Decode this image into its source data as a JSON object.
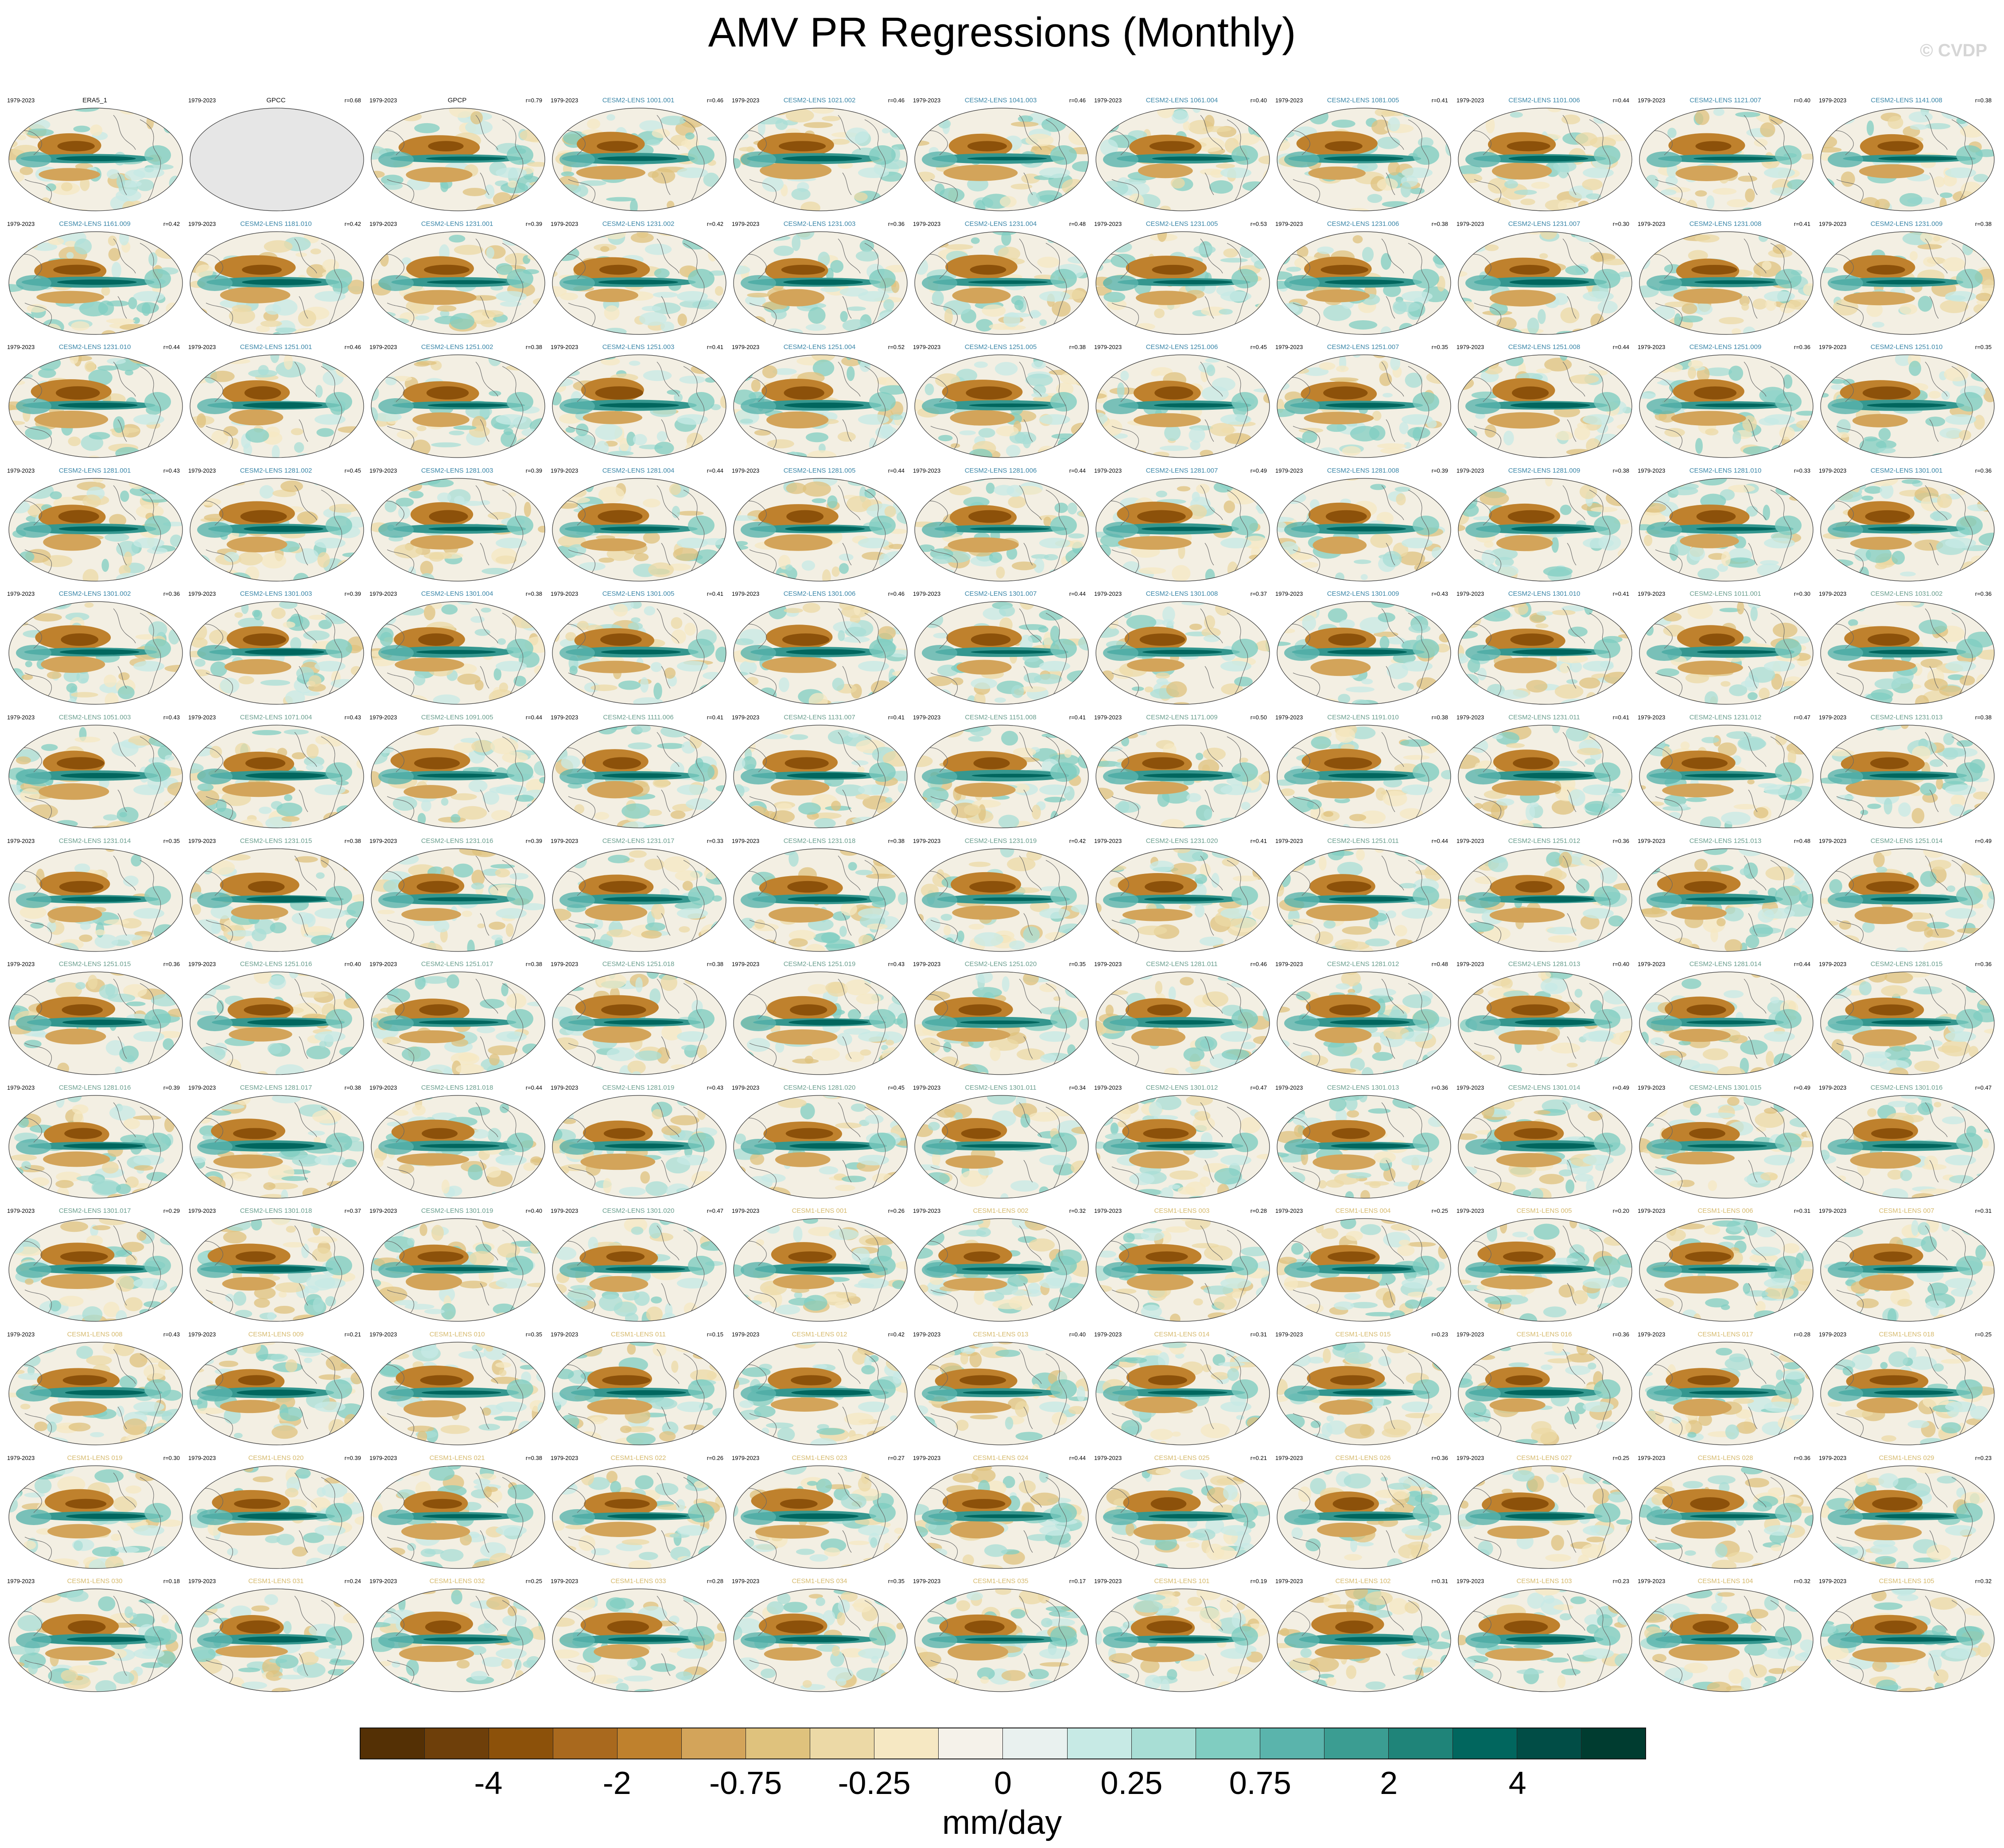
{
  "title": "AMV PR Regressions (Monthly)",
  "watermark": "© CVDP",
  "period_label": "1979-2023",
  "panels": [
    {
      "name": "ERA5_1",
      "r": "",
      "group": "obs",
      "map": "ocean"
    },
    {
      "name": "GPCC",
      "r": "r=0.68",
      "group": "obs",
      "map": "gray"
    },
    {
      "name": "GPCP",
      "r": "r=0.79",
      "group": "obs",
      "map": "ocean"
    },
    {
      "name": "CESM2-LENS 1001.001",
      "r": "r=0.46",
      "group": "cesm2",
      "map": "ocean"
    },
    {
      "name": "CESM2-LENS 1021.002",
      "r": "r=0.46",
      "group": "cesm2",
      "map": "ocean"
    },
    {
      "name": "CESM2-LENS 1041.003",
      "r": "r=0.46",
      "group": "cesm2",
      "map": "ocean"
    },
    {
      "name": "CESM2-LENS 1061.004",
      "r": "r=0.40",
      "group": "cesm2",
      "map": "ocean"
    },
    {
      "name": "CESM2-LENS 1081.005",
      "r": "r=0.41",
      "group": "cesm2",
      "map": "ocean"
    },
    {
      "name": "CESM2-LENS 1101.006",
      "r": "r=0.44",
      "group": "cesm2",
      "map": "ocean"
    },
    {
      "name": "CESM2-LENS 1121.007",
      "r": "r=0.40",
      "group": "cesm2",
      "map": "ocean"
    },
    {
      "name": "CESM2-LENS 1141.008",
      "r": "r=0.38",
      "group": "cesm2",
      "map": "ocean"
    },
    {
      "name": "CESM2-LENS 1161.009",
      "r": "r=0.42",
      "group": "cesm2",
      "map": "ocean"
    },
    {
      "name": "CESM2-LENS 1181.010",
      "r": "r=0.42",
      "group": "cesm2",
      "map": "ocean"
    },
    {
      "name": "CESM2-LENS 1231.001",
      "r": "r=0.39",
      "group": "cesm2",
      "map": "ocean"
    },
    {
      "name": "CESM2-LENS 1231.002",
      "r": "r=0.42",
      "group": "cesm2",
      "map": "ocean"
    },
    {
      "name": "CESM2-LENS 1231.003",
      "r": "r=0.36",
      "group": "cesm2",
      "map": "ocean"
    },
    {
      "name": "CESM2-LENS 1231.004",
      "r": "r=0.48",
      "group": "cesm2",
      "map": "ocean"
    },
    {
      "name": "CESM2-LENS 1231.005",
      "r": "r=0.53",
      "group": "cesm2",
      "map": "ocean"
    },
    {
      "name": "CESM2-LENS 1231.006",
      "r": "r=0.38",
      "group": "cesm2",
      "map": "ocean"
    },
    {
      "name": "CESM2-LENS 1231.007",
      "r": "r=0.30",
      "group": "cesm2",
      "map": "ocean"
    },
    {
      "name": "CESM2-LENS 1231.008",
      "r": "r=0.41",
      "group": "cesm2",
      "map": "ocean"
    },
    {
      "name": "CESM2-LENS 1231.009",
      "r": "r=0.38",
      "group": "cesm2",
      "map": "ocean"
    },
    {
      "name": "CESM2-LENS 1231.010",
      "r": "r=0.44",
      "group": "cesm2",
      "map": "ocean"
    },
    {
      "name": "CESM2-LENS 1251.001",
      "r": "r=0.46",
      "group": "cesm2",
      "map": "ocean"
    },
    {
      "name": "CESM2-LENS 1251.002",
      "r": "r=0.38",
      "group": "cesm2",
      "map": "ocean"
    },
    {
      "name": "CESM2-LENS 1251.003",
      "r": "r=0.41",
      "group": "cesm2",
      "map": "ocean"
    },
    {
      "name": "CESM2-LENS 1251.004",
      "r": "r=0.52",
      "group": "cesm2",
      "map": "ocean"
    },
    {
      "name": "CESM2-LENS 1251.005",
      "r": "r=0.38",
      "group": "cesm2",
      "map": "ocean"
    },
    {
      "name": "CESM2-LENS 1251.006",
      "r": "r=0.45",
      "group": "cesm2",
      "map": "ocean"
    },
    {
      "name": "CESM2-LENS 1251.007",
      "r": "r=0.35",
      "group": "cesm2",
      "map": "ocean"
    },
    {
      "name": "CESM2-LENS 1251.008",
      "r": "r=0.44",
      "group": "cesm2",
      "map": "ocean"
    },
    {
      "name": "CESM2-LENS 1251.009",
      "r": "r=0.36",
      "group": "cesm2",
      "map": "ocean"
    },
    {
      "name": "CESM2-LENS 1251.010",
      "r": "r=0.35",
      "group": "cesm2",
      "map": "ocean"
    },
    {
      "name": "CESM2-LENS 1281.001",
      "r": "r=0.43",
      "group": "cesm2",
      "map": "ocean"
    },
    {
      "name": "CESM2-LENS 1281.002",
      "r": "r=0.45",
      "group": "cesm2",
      "map": "ocean"
    },
    {
      "name": "CESM2-LENS 1281.003",
      "r": "r=0.39",
      "group": "cesm2",
      "map": "ocean"
    },
    {
      "name": "CESM2-LENS 1281.004",
      "r": "r=0.44",
      "group": "cesm2",
      "map": "ocean"
    },
    {
      "name": "CESM2-LENS 1281.005",
      "r": "r=0.44",
      "group": "cesm2",
      "map": "ocean"
    },
    {
      "name": "CESM2-LENS 1281.006",
      "r": "r=0.44",
      "group": "cesm2",
      "map": "ocean"
    },
    {
      "name": "CESM2-LENS 1281.007",
      "r": "r=0.49",
      "group": "cesm2",
      "map": "ocean"
    },
    {
      "name": "CESM2-LENS 1281.008",
      "r": "r=0.39",
      "group": "cesm2",
      "map": "ocean"
    },
    {
      "name": "CESM2-LENS 1281.009",
      "r": "r=0.38",
      "group": "cesm2",
      "map": "ocean"
    },
    {
      "name": "CESM2-LENS 1281.010",
      "r": "r=0.33",
      "group": "cesm2",
      "map": "ocean"
    },
    {
      "name": "CESM2-LENS 1301.001",
      "r": "r=0.36",
      "group": "cesm2",
      "map": "ocean"
    },
    {
      "name": "CESM2-LENS 1301.002",
      "r": "r=0.36",
      "group": "cesm2",
      "map": "ocean"
    },
    {
      "name": "CESM2-LENS 1301.003",
      "r": "r=0.39",
      "group": "cesm2",
      "map": "ocean"
    },
    {
      "name": "CESM2-LENS 1301.004",
      "r": "r=0.38",
      "group": "cesm2",
      "map": "ocean"
    },
    {
      "name": "CESM2-LENS 1301.005",
      "r": "r=0.41",
      "group": "cesm2",
      "map": "ocean"
    },
    {
      "name": "CESM2-LENS 1301.006",
      "r": "r=0.46",
      "group": "cesm2",
      "map": "ocean"
    },
    {
      "name": "CESM2-LENS 1301.007",
      "r": "r=0.44",
      "group": "cesm2",
      "map": "ocean"
    },
    {
      "name": "CESM2-LENS 1301.008",
      "r": "r=0.37",
      "group": "cesm2",
      "map": "ocean"
    },
    {
      "name": "CESM2-LENS 1301.009",
      "r": "r=0.43",
      "group": "cesm2",
      "map": "ocean"
    },
    {
      "name": "CESM2-LENS 1301.010",
      "r": "r=0.41",
      "group": "cesm2",
      "map": "ocean"
    },
    {
      "name": "CESM2-LENS 1011.001",
      "r": "r=0.30",
      "group": "cesm2b",
      "map": "ocean"
    },
    {
      "name": "CESM2-LENS 1031.002",
      "r": "r=0.36",
      "group": "cesm2b",
      "map": "ocean"
    },
    {
      "name": "CESM2-LENS 1051.003",
      "r": "r=0.43",
      "group": "cesm2b",
      "map": "ocean"
    },
    {
      "name": "CESM2-LENS 1071.004",
      "r": "r=0.43",
      "group": "cesm2b",
      "map": "ocean"
    },
    {
      "name": "CESM2-LENS 1091.005",
      "r": "r=0.44",
      "group": "cesm2b",
      "map": "ocean"
    },
    {
      "name": "CESM2-LENS 1111.006",
      "r": "r=0.41",
      "group": "cesm2b",
      "map": "ocean"
    },
    {
      "name": "CESM2-LENS 1131.007",
      "r": "r=0.41",
      "group": "cesm2b",
      "map": "ocean"
    },
    {
      "name": "CESM2-LENS 1151.008",
      "r": "r=0.41",
      "group": "cesm2b",
      "map": "ocean"
    },
    {
      "name": "CESM2-LENS 1171.009",
      "r": "r=0.50",
      "group": "cesm2b",
      "map": "ocean"
    },
    {
      "name": "CESM2-LENS 1191.010",
      "r": "r=0.38",
      "group": "cesm2b",
      "map": "ocean"
    },
    {
      "name": "CESM2-LENS 1231.011",
      "r": "r=0.41",
      "group": "cesm2b",
      "map": "ocean"
    },
    {
      "name": "CESM2-LENS 1231.012",
      "r": "r=0.47",
      "group": "cesm2b",
      "map": "ocean"
    },
    {
      "name": "CESM2-LENS 1231.013",
      "r": "r=0.38",
      "group": "cesm2b",
      "map": "ocean"
    },
    {
      "name": "CESM2-LENS 1231.014",
      "r": "r=0.35",
      "group": "cesm2b",
      "map": "ocean"
    },
    {
      "name": "CESM2-LENS 1231.015",
      "r": "r=0.38",
      "group": "cesm2b",
      "map": "ocean"
    },
    {
      "name": "CESM2-LENS 1231.016",
      "r": "r=0.39",
      "group": "cesm2b",
      "map": "ocean"
    },
    {
      "name": "CESM2-LENS 1231.017",
      "r": "r=0.33",
      "group": "cesm2b",
      "map": "ocean"
    },
    {
      "name": "CESM2-LENS 1231.018",
      "r": "r=0.38",
      "group": "cesm2b",
      "map": "ocean"
    },
    {
      "name": "CESM2-LENS 1231.019",
      "r": "r=0.42",
      "group": "cesm2b",
      "map": "ocean"
    },
    {
      "name": "CESM2-LENS 1231.020",
      "r": "r=0.41",
      "group": "cesm2b",
      "map": "ocean"
    },
    {
      "name": "CESM2-LENS 1251.011",
      "r": "r=0.44",
      "group": "cesm2b",
      "map": "ocean"
    },
    {
      "name": "CESM2-LENS 1251.012",
      "r": "r=0.36",
      "group": "cesm2b",
      "map": "ocean"
    },
    {
      "name": "CESM2-LENS 1251.013",
      "r": "r=0.48",
      "group": "cesm2b",
      "map": "ocean"
    },
    {
      "name": "CESM2-LENS 1251.014",
      "r": "r=0.49",
      "group": "cesm2b",
      "map": "ocean"
    },
    {
      "name": "CESM2-LENS 1251.015",
      "r": "r=0.36",
      "group": "cesm2b",
      "map": "ocean"
    },
    {
      "name": "CESM2-LENS 1251.016",
      "r": "r=0.40",
      "group": "cesm2b",
      "map": "ocean"
    },
    {
      "name": "CESM2-LENS 1251.017",
      "r": "r=0.38",
      "group": "cesm2b",
      "map": "ocean"
    },
    {
      "name": "CESM2-LENS 1251.018",
      "r": "r=0.38",
      "group": "cesm2b",
      "map": "ocean"
    },
    {
      "name": "CESM2-LENS 1251.019",
      "r": "r=0.43",
      "group": "cesm2b",
      "map": "ocean"
    },
    {
      "name": "CESM2-LENS 1251.020",
      "r": "r=0.35",
      "group": "cesm2b",
      "map": "ocean"
    },
    {
      "name": "CESM2-LENS 1281.011",
      "r": "r=0.46",
      "group": "cesm2b",
      "map": "ocean"
    },
    {
      "name": "CESM2-LENS 1281.012",
      "r": "r=0.48",
      "group": "cesm2b",
      "map": "ocean"
    },
    {
      "name": "CESM2-LENS 1281.013",
      "r": "r=0.40",
      "group": "cesm2b",
      "map": "ocean"
    },
    {
      "name": "CESM2-LENS 1281.014",
      "r": "r=0.44",
      "group": "cesm2b",
      "map": "ocean"
    },
    {
      "name": "CESM2-LENS 1281.015",
      "r": "r=0.36",
      "group": "cesm2b",
      "map": "ocean"
    },
    {
      "name": "CESM2-LENS 1281.016",
      "r": "r=0.39",
      "group": "cesm2b",
      "map": "ocean"
    },
    {
      "name": "CESM2-LENS 1281.017",
      "r": "r=0.38",
      "group": "cesm2b",
      "map": "ocean"
    },
    {
      "name": "CESM2-LENS 1281.018",
      "r": "r=0.44",
      "group": "cesm2b",
      "map": "ocean"
    },
    {
      "name": "CESM2-LENS 1281.019",
      "r": "r=0.43",
      "group": "cesm2b",
      "map": "ocean"
    },
    {
      "name": "CESM2-LENS 1281.020",
      "r": "r=0.45",
      "group": "cesm2b",
      "map": "ocean"
    },
    {
      "name": "CESM2-LENS 1301.011",
      "r": "r=0.34",
      "group": "cesm2b",
      "map": "ocean"
    },
    {
      "name": "CESM2-LENS 1301.012",
      "r": "r=0.47",
      "group": "cesm2b",
      "map": "ocean"
    },
    {
      "name": "CESM2-LENS 1301.013",
      "r": "r=0.36",
      "group": "cesm2b",
      "map": "ocean"
    },
    {
      "name": "CESM2-LENS 1301.014",
      "r": "r=0.49",
      "group": "cesm2b",
      "map": "ocean"
    },
    {
      "name": "CESM2-LENS 1301.015",
      "r": "r=0.49",
      "group": "cesm2b",
      "map": "ocean"
    },
    {
      "name": "CESM2-LENS 1301.016",
      "r": "r=0.47",
      "group": "cesm2b",
      "map": "ocean"
    },
    {
      "name": "CESM2-LENS 1301.017",
      "r": "r=0.29",
      "group": "cesm2b",
      "map": "ocean"
    },
    {
      "name": "CESM2-LENS 1301.018",
      "r": "r=0.37",
      "group": "cesm2b",
      "map": "ocean"
    },
    {
      "name": "CESM2-LENS 1301.019",
      "r": "r=0.40",
      "group": "cesm2b",
      "map": "ocean"
    },
    {
      "name": "CESM2-LENS 1301.020",
      "r": "r=0.47",
      "group": "cesm2b",
      "map": "ocean"
    },
    {
      "name": "CESM1-LENS 001",
      "r": "r=0.26",
      "group": "cesm1",
      "map": "ocean"
    },
    {
      "name": "CESM1-LENS 002",
      "r": "r=0.32",
      "group": "cesm1",
      "map": "ocean"
    },
    {
      "name": "CESM1-LENS 003",
      "r": "r=0.28",
      "group": "cesm1",
      "map": "ocean"
    },
    {
      "name": "CESM1-LENS 004",
      "r": "r=0.25",
      "group": "cesm1",
      "map": "ocean"
    },
    {
      "name": "CESM1-LENS 005",
      "r": "r=0.20",
      "group": "cesm1",
      "map": "ocean"
    },
    {
      "name": "CESM1-LENS 006",
      "r": "r=0.31",
      "group": "cesm1",
      "map": "ocean"
    },
    {
      "name": "CESM1-LENS 007",
      "r": "r=0.31",
      "group": "cesm1",
      "map": "ocean"
    },
    {
      "name": "CESM1-LENS 008",
      "r": "r=0.43",
      "group": "cesm1",
      "map": "ocean"
    },
    {
      "name": "CESM1-LENS 009",
      "r": "r=0.21",
      "group": "cesm1",
      "map": "ocean"
    },
    {
      "name": "CESM1-LENS 010",
      "r": "r=0.35",
      "group": "cesm1",
      "map": "ocean"
    },
    {
      "name": "CESM1-LENS 011",
      "r": "r=0.15",
      "group": "cesm1",
      "map": "ocean"
    },
    {
      "name": "CESM1-LENS 012",
      "r": "r=0.42",
      "group": "cesm1",
      "map": "ocean"
    },
    {
      "name": "CESM1-LENS 013",
      "r": "r=0.40",
      "group": "cesm1",
      "map": "ocean"
    },
    {
      "name": "CESM1-LENS 014",
      "r": "r=0.31",
      "group": "cesm1",
      "map": "ocean"
    },
    {
      "name": "CESM1-LENS 015",
      "r": "r=0.23",
      "group": "cesm1",
      "map": "ocean"
    },
    {
      "name": "CESM1-LENS 016",
      "r": "r=0.36",
      "group": "cesm1",
      "map": "ocean"
    },
    {
      "name": "CESM1-LENS 017",
      "r": "r=0.28",
      "group": "cesm1",
      "map": "ocean"
    },
    {
      "name": "CESM1-LENS 018",
      "r": "r=0.25",
      "group": "cesm1",
      "map": "ocean"
    },
    {
      "name": "CESM1-LENS 019",
      "r": "r=0.30",
      "group": "cesm1",
      "map": "ocean"
    },
    {
      "name": "CESM1-LENS 020",
      "r": "r=0.39",
      "group": "cesm1",
      "map": "ocean"
    },
    {
      "name": "CESM1-LENS 021",
      "r": "r=0.38",
      "group": "cesm1",
      "map": "ocean"
    },
    {
      "name": "CESM1-LENS 022",
      "r": "r=0.26",
      "group": "cesm1",
      "map": "ocean"
    },
    {
      "name": "CESM1-LENS 023",
      "r": "r=0.27",
      "group": "cesm1",
      "map": "ocean"
    },
    {
      "name": "CESM1-LENS 024",
      "r": "r=0.44",
      "group": "cesm1",
      "map": "ocean"
    },
    {
      "name": "CESM1-LENS 025",
      "r": "r=0.21",
      "group": "cesm1",
      "map": "ocean"
    },
    {
      "name": "CESM1-LENS 026",
      "r": "r=0.36",
      "group": "cesm1",
      "map": "ocean"
    },
    {
      "name": "CESM1-LENS 027",
      "r": "r=0.25",
      "group": "cesm1",
      "map": "ocean"
    },
    {
      "name": "CESM1-LENS 028",
      "r": "r=0.36",
      "group": "cesm1",
      "map": "ocean"
    },
    {
      "name": "CESM1-LENS 029",
      "r": "r=0.23",
      "group": "cesm1",
      "map": "ocean"
    },
    {
      "name": "CESM1-LENS 030",
      "r": "r=0.18",
      "group": "cesm1",
      "map": "ocean"
    },
    {
      "name": "CESM1-LENS 031",
      "r": "r=0.24",
      "group": "cesm1",
      "map": "ocean"
    },
    {
      "name": "CESM1-LENS 032",
      "r": "r=0.25",
      "group": "cesm1",
      "map": "ocean"
    },
    {
      "name": "CESM1-LENS 033",
      "r": "r=0.28",
      "group": "cesm1",
      "map": "ocean"
    },
    {
      "name": "CESM1-LENS 034",
      "r": "r=0.35",
      "group": "cesm1",
      "map": "ocean"
    },
    {
      "name": "CESM1-LENS 035",
      "r": "r=0.17",
      "group": "cesm1",
      "map": "ocean"
    },
    {
      "name": "CESM1-LENS 101",
      "r": "r=0.19",
      "group": "cesm1",
      "map": "ocean"
    },
    {
      "name": "CESM1-LENS 102",
      "r": "r=0.31",
      "group": "cesm1",
      "map": "ocean"
    },
    {
      "name": "CESM1-LENS 103",
      "r": "r=0.23",
      "group": "cesm1",
      "map": "ocean"
    },
    {
      "name": "CESM1-LENS 104",
      "r": "r=0.32",
      "group": "cesm1",
      "map": "ocean"
    },
    {
      "name": "CESM1-LENS 105",
      "r": "r=0.32",
      "group": "cesm1",
      "map": "ocean"
    }
  ],
  "group_colors": {
    "obs": "#111111",
    "cesm2": "#3a86a8",
    "cesm2b": "#6a9e8e",
    "cesm1": "#d6ba6e"
  },
  "colorbar": {
    "units": "mm/day",
    "colors": [
      "#543005",
      "#6e3f0a",
      "#8c510a",
      "#a9691e",
      "#bf812d",
      "#d3a45a",
      "#dfc27d",
      "#ecd9a6",
      "#f6e8c3",
      "#f5f2ea",
      "#e9f1ef",
      "#c7eae5",
      "#a8ded5",
      "#80cdc1",
      "#5ab4ac",
      "#3b9d92",
      "#1f8479",
      "#01665e",
      "#014d46",
      "#003c30"
    ],
    "ticks": [
      {
        "label": "-4",
        "edge": 2
      },
      {
        "label": "-2",
        "edge": 4
      },
      {
        "label": "-0.75",
        "edge": 6
      },
      {
        "label": "-0.25",
        "edge": 8
      },
      {
        "label": "0",
        "edge": 10
      },
      {
        "label": "0.25",
        "edge": 12
      },
      {
        "label": "0.75",
        "edge": 14
      },
      {
        "label": "2",
        "edge": 16
      },
      {
        "label": "4",
        "edge": 18
      }
    ]
  }
}
